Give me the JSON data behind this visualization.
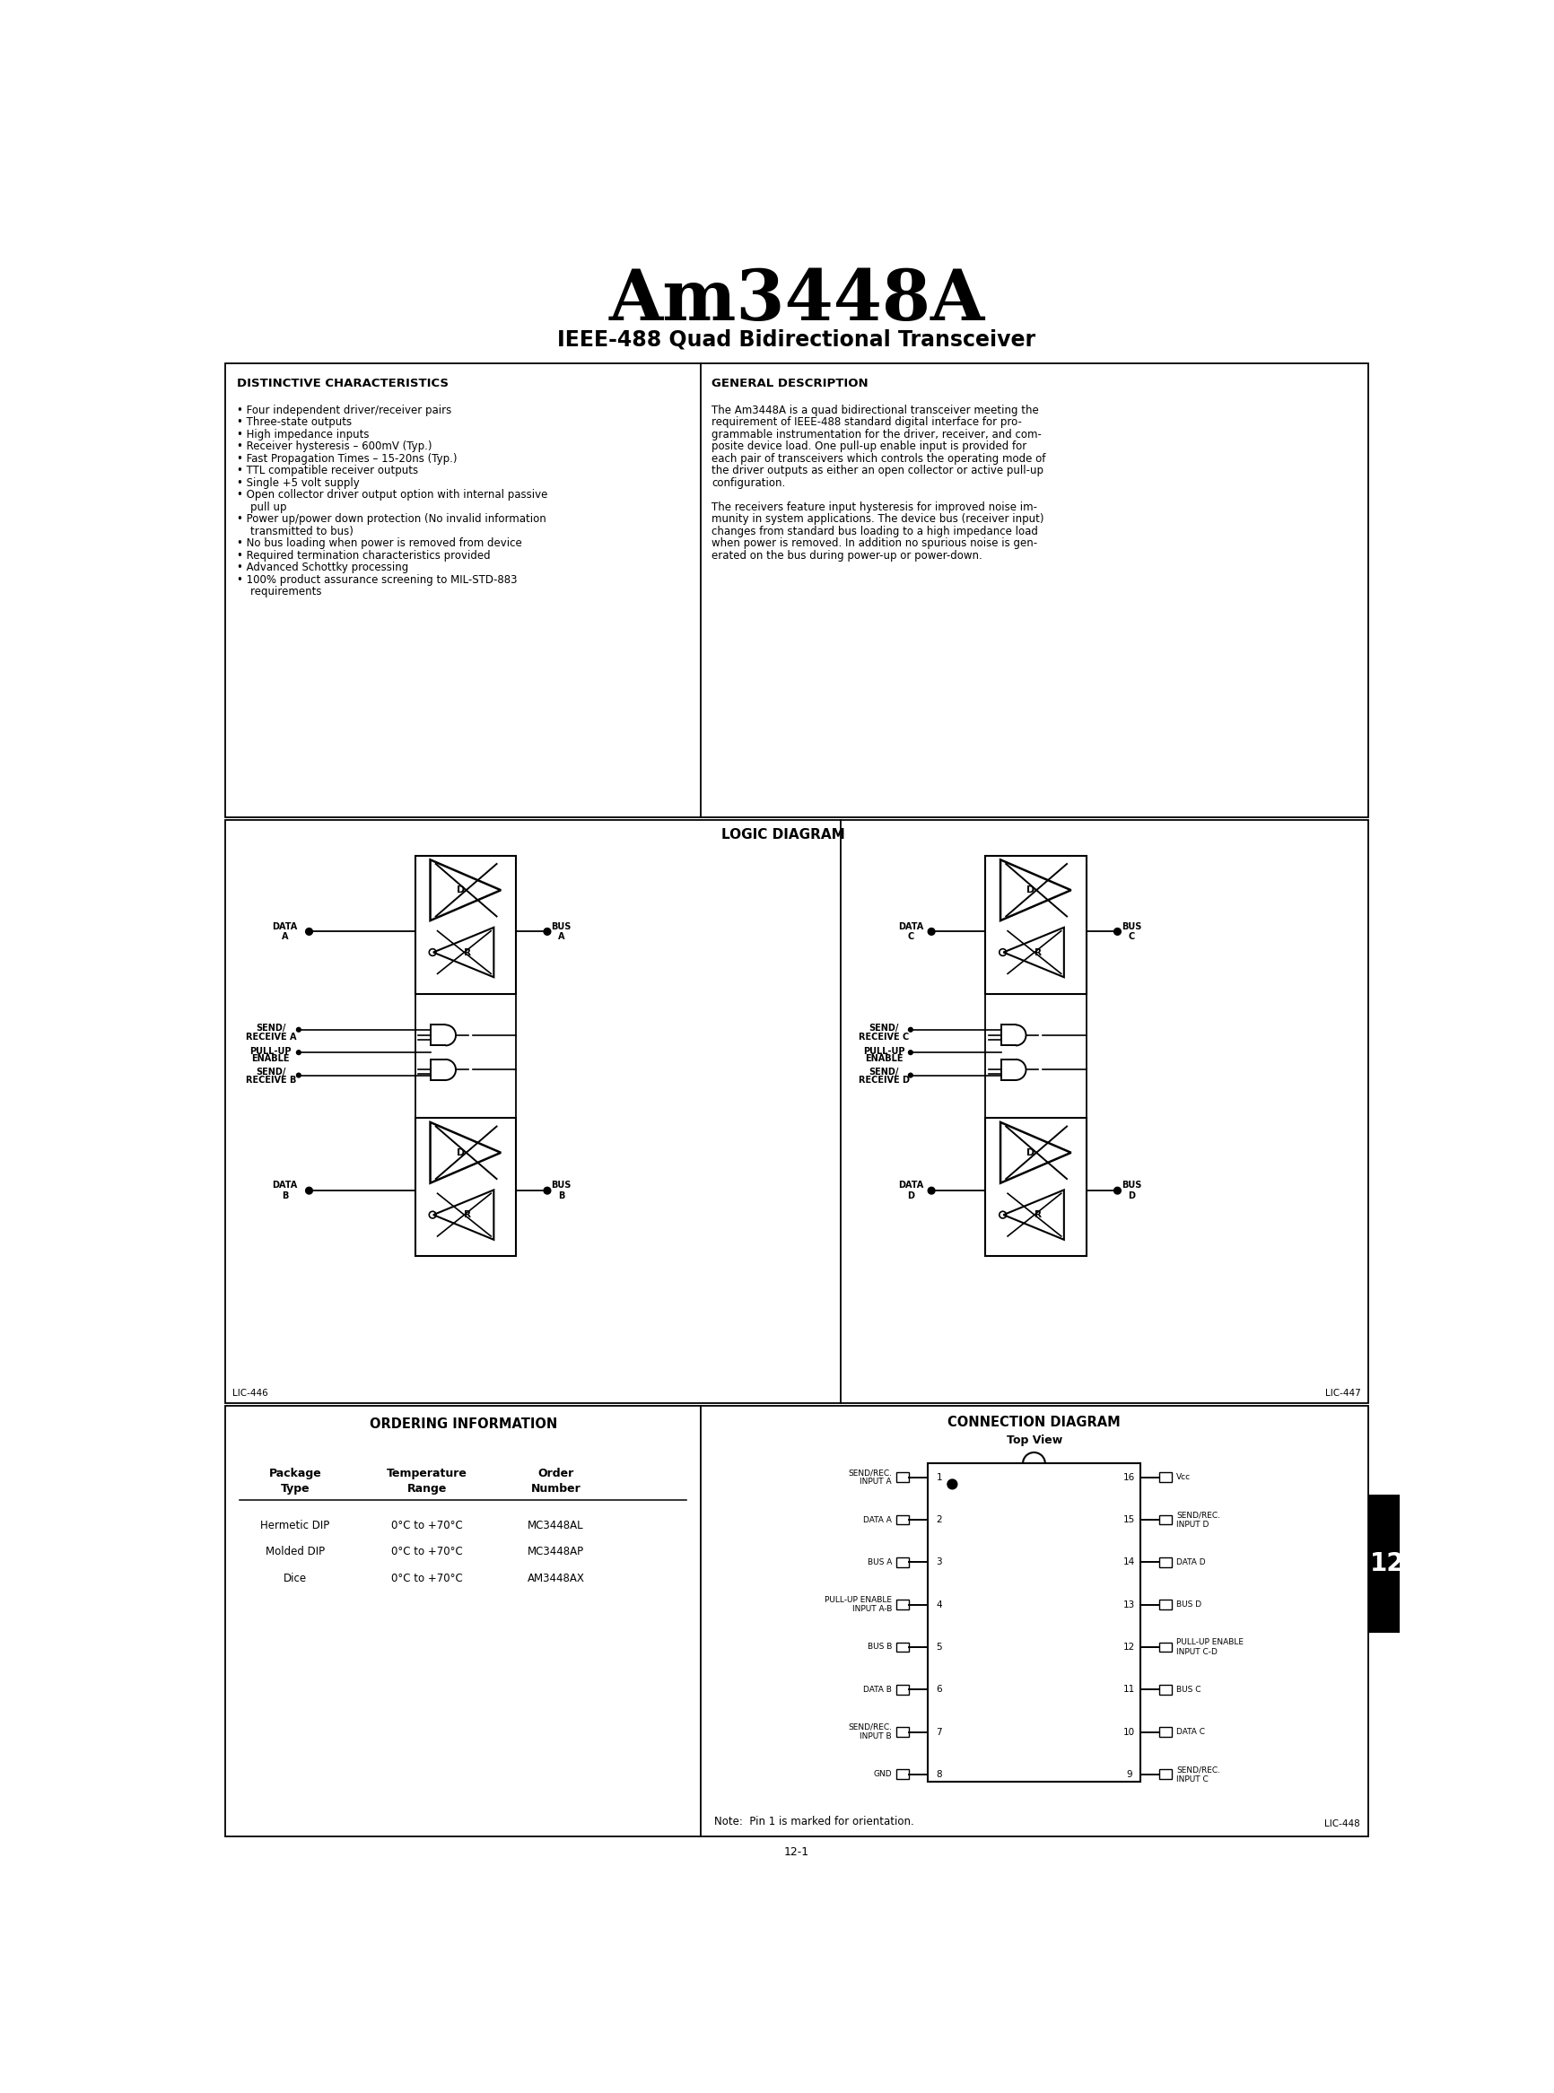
{
  "title": "Am3448A",
  "subtitle": "IEEE-488 Quad Bidirectional Transceiver",
  "bg_color": "#ffffff",
  "distinctive_title": "DISTINCTIVE CHARACTERISTICS",
  "distinctive_items": [
    "Four independent driver/receiver pairs",
    "Three-state outputs",
    "High impedance inputs",
    "Receiver hysteresis – 600mV (Typ.)",
    "Fast Propagation Times – 15-20ns (Typ.)",
    "TTL compatible receiver outputs",
    "Single +5 volt supply",
    "Open collector driver output option with internal passive|    pull up",
    "Power up/power down protection (No invalid information|    transmitted to bus)",
    "No bus loading when power is removed from device",
    "Required termination characteristics provided",
    "Advanced Schottky processing",
    "100% product assurance screening to MIL-STD-883|    requirements"
  ],
  "general_title": "GENERAL DESCRIPTION",
  "gen_lines": [
    "The Am3448A is a quad bidirectional transceiver meeting the",
    "requirement of IEEE-488 standard digital interface for pro-",
    "grammable instrumentation for the driver, receiver, and com-",
    "posite device load. One pull-up enable input is provided for",
    "each pair of transceivers which controls the operating mode of",
    "the driver outputs as either an open collector or active pull-up",
    "configuration.",
    "",
    "The receivers feature input hysteresis for improved noise im-",
    "munity in system applications. The device bus (receiver input)",
    "changes from standard bus loading to a high impedance load",
    "when power is removed. In addition no spurious noise is gen-",
    "erated on the bus during power-up or power-down."
  ],
  "logic_title": "LOGIC DIAGRAM",
  "ordering_title": "ORDERING INFORMATION",
  "ordering_rows": [
    [
      "Hermetic DIP",
      "0°C to +70°C",
      "MC3448AL"
    ],
    [
      "Molded DIP",
      "0°C to +70°C",
      "MC3448AP"
    ],
    [
      "Dice",
      "0°C to +70°C",
      "AM3448AX"
    ]
  ],
  "connection_title": "CONNECTION DIAGRAM",
  "connection_subtitle": "Top View",
  "pin_labels_left": [
    "SEND/REC.\nINPUT A",
    "DATA A",
    "BUS A",
    "PULL-UP ENABLE\nINPUT A-B",
    "BUS B",
    "DATA B",
    "SEND/REC.\nINPUT B",
    "GND"
  ],
  "pin_labels_right": [
    "Vᴄᴄ",
    "SEND/REC.\nINPUT D",
    "DATA D",
    "BUS D",
    "PULL-UP ENABLE\nINPUT C-D",
    "BUS C",
    "DATA C",
    "SEND/REC.\nINPUT C"
  ],
  "pin_numbers_left": [
    1,
    2,
    3,
    4,
    5,
    6,
    7,
    8
  ],
  "pin_numbers_right": [
    16,
    15,
    14,
    13,
    12,
    11,
    10,
    9
  ],
  "lic446": "LIC-446",
  "lic447": "LIC-447",
  "lic448": "LIC-448",
  "page_num": "12-1",
  "tab_label": "12",
  "note_text": "Note:  Pin 1 is marked for orientation."
}
